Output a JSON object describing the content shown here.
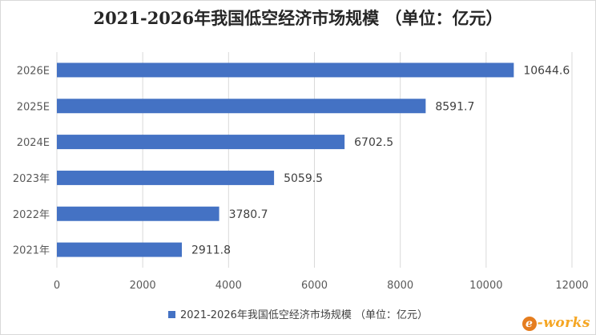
{
  "chart_data": {
    "type": "bar",
    "orientation": "horizontal",
    "title": "2021-2026年我国低空经济市场规模 （单位：亿元）",
    "categories": [
      "2021年",
      "2022年",
      "2023年",
      "2024E",
      "2025E",
      "2026E"
    ],
    "series": [
      {
        "name": "2021-2026年我国低空经济市场规模 （单位：亿元）",
        "values": [
          2911.8,
          3780.7,
          5059.5,
          6702.5,
          8591.7,
          10644.6
        ],
        "color": "#4472c4"
      }
    ],
    "value_labels": [
      "2911.8",
      "3780.7",
      "5059.5",
      "6702.5",
      "8591.7",
      "10644.6"
    ],
    "xlim": [
      0,
      12000
    ],
    "x_ticks": [
      0,
      2000,
      4000,
      6000,
      8000,
      10000,
      12000
    ],
    "grid": true,
    "legend_position": "bottom",
    "xlabel": "",
    "ylabel": ""
  },
  "watermark": {
    "text": "e-works"
  }
}
